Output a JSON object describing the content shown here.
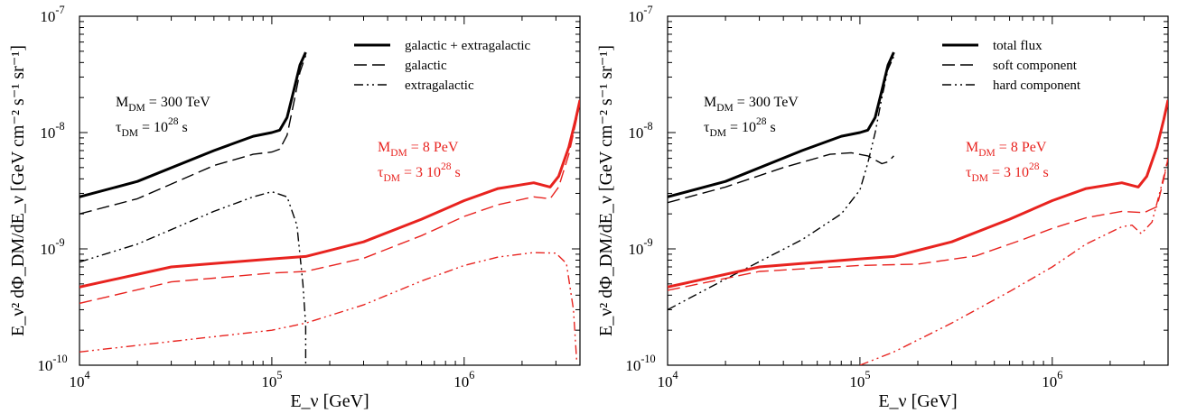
{
  "chart_data": [
    {
      "type": "line",
      "xscale": "log",
      "yscale": "log",
      "xlim": [
        10000,
        4000000
      ],
      "ylim": [
        1e-10,
        1e-07
      ],
      "grid": false,
      "legend_position": "top-right",
      "xlabel": "E_ν [GeV]",
      "ylabel": "E_ν² dΦ_DM/dE_ν [GeV cm⁻² s⁻¹ sr⁻¹]",
      "x_ticks": [
        "10^4",
        "10^5",
        "10^6"
      ],
      "y_ticks": [
        "10^-10",
        "10^-9",
        "10^-8",
        "10^-7"
      ],
      "legend": [
        "galactic + extragalactic",
        "galactic",
        "extragalactic"
      ],
      "annotations": [
        {
          "color": "#000000",
          "mass": "M_DM = 300 TeV",
          "tau": "τ_DM = 10^28 s"
        },
        {
          "color": "#e8231f",
          "mass": "M_DM = 8 PeV",
          "tau": "τ_DM = 3 10^28 s"
        }
      ],
      "series": [
        {
          "name": "galactic + extragalactic",
          "color": "#000000",
          "style": "solid",
          "width": 3,
          "x": [
            10000,
            20000,
            50000,
            80000,
            100000,
            110000,
            120000,
            130000,
            140000,
            150000
          ],
          "y": [
            2.8e-09,
            3.8e-09,
            7e-09,
            9.3e-09,
            1e-08,
            1.05e-08,
            1.35e-08,
            2.3e-08,
            3.8e-08,
            4.9e-08
          ]
        },
        {
          "name": "galactic",
          "color": "#000000",
          "style": "dashed",
          "width": 1.4,
          "x": [
            10000,
            20000,
            50000,
            80000,
            100000,
            110000,
            120000,
            130000,
            140000,
            150000
          ],
          "y": [
            2e-09,
            2.7e-09,
            5.2e-09,
            6.5e-09,
            6.8e-09,
            7.2e-09,
            9.5e-09,
            1.8e-08,
            3.3e-08,
            4.6e-08
          ]
        },
        {
          "name": "extragalactic",
          "color": "#000000",
          "style": "dashdotdot",
          "width": 1.4,
          "x": [
            10000,
            20000,
            50000,
            80000,
            100000,
            120000,
            135000,
            145000,
            150000,
            150000
          ],
          "y": [
            7.7e-10,
            1.1e-09,
            2.1e-09,
            2.8e-09,
            3.1e-09,
            2.8e-09,
            1.6e-09,
            5e-10,
            2.2e-10,
            1e-10
          ]
        },
        {
          "name": "galactic + extragalactic",
          "color": "#e8231f",
          "style": "solid",
          "width": 3,
          "x": [
            10000,
            30000,
            100000,
            150000,
            300000,
            600000,
            1000000,
            1500000,
            2300000,
            2800000,
            3100000,
            3500000,
            3800000,
            4000000
          ],
          "y": [
            4.7e-10,
            7e-10,
            8.2e-10,
            8.6e-10,
            1.15e-09,
            1.8e-09,
            2.6e-09,
            3.3e-09,
            3.7e-09,
            3.4e-09,
            4.2e-09,
            7.5e-09,
            1.3e-08,
            1.9e-08
          ]
        },
        {
          "name": "galactic",
          "color": "#e8231f",
          "style": "dashed",
          "width": 1.4,
          "x": [
            10000,
            30000,
            100000,
            150000,
            300000,
            600000,
            1000000,
            1500000,
            2300000,
            2800000,
            3100000,
            3500000,
            3800000,
            4000000
          ],
          "y": [
            3.4e-10,
            5.2e-10,
            6.2e-10,
            6.4e-10,
            8.3e-10,
            1.3e-09,
            1.9e-09,
            2.4e-09,
            2.8e-09,
            2.7e-09,
            3.4e-09,
            6.5e-09,
            1.2e-08,
            1.8e-08
          ]
        },
        {
          "name": "extragalactic",
          "color": "#e8231f",
          "style": "dashdotdot",
          "width": 1.4,
          "x": [
            10000,
            30000,
            100000,
            150000,
            300000,
            600000,
            1000000,
            1500000,
            2300000,
            3000000,
            3400000,
            3700000,
            3850000
          ],
          "y": [
            1.3e-10,
            1.6e-10,
            2e-10,
            2.3e-10,
            3.3e-10,
            5.3e-10,
            7.2e-10,
            8.5e-10,
            9.3e-10,
            9.2e-10,
            7.5e-10,
            3e-10,
            1.05e-10
          ]
        }
      ]
    },
    {
      "type": "line",
      "xscale": "log",
      "yscale": "log",
      "xlim": [
        10000,
        4000000
      ],
      "ylim": [
        1e-10,
        1e-07
      ],
      "grid": false,
      "legend_position": "top-right",
      "xlabel": "E_ν [GeV]",
      "ylabel": "E_ν² dΦ_DM/dE_ν [GeV cm⁻² s⁻¹ sr⁻¹]",
      "x_ticks": [
        "10^4",
        "10^5",
        "10^6"
      ],
      "y_ticks": [
        "10^-10",
        "10^-9",
        "10^-8",
        "10^-7"
      ],
      "legend": [
        "total flux",
        "soft component",
        "hard component"
      ],
      "annotations": [
        {
          "color": "#000000",
          "mass": "M_DM = 300 TeV",
          "tau": "τ_DM = 10^28 s"
        },
        {
          "color": "#e8231f",
          "mass": "M_DM = 8 PeV",
          "tau": "τ_DM = 3 10^28 s"
        }
      ],
      "series": [
        {
          "name": "total flux",
          "color": "#000000",
          "style": "solid",
          "width": 3,
          "x": [
            10000,
            20000,
            50000,
            80000,
            100000,
            110000,
            120000,
            130000,
            140000,
            150000
          ],
          "y": [
            2.8e-09,
            3.8e-09,
            7e-09,
            9.3e-09,
            1e-08,
            1.05e-08,
            1.35e-08,
            2.3e-08,
            3.8e-08,
            4.9e-08
          ]
        },
        {
          "name": "soft component",
          "color": "#000000",
          "style": "dashed",
          "width": 1.4,
          "x": [
            10000,
            20000,
            40000,
            70000,
            90000,
            110000,
            130000,
            140000,
            150000
          ],
          "y": [
            2.5e-09,
            3.4e-09,
            5e-09,
            6.5e-09,
            6.7e-09,
            6.3e-09,
            5.4e-09,
            5.6e-09,
            6.3e-09
          ]
        },
        {
          "name": "hard component",
          "color": "#000000",
          "style": "dashdotdot",
          "width": 1.4,
          "x": [
            10000,
            20000,
            50000,
            80000,
            100000,
            110000,
            120000,
            130000,
            140000,
            150000
          ],
          "y": [
            3e-10,
            5.5e-10,
            1.2e-09,
            2e-09,
            3.2e-09,
            5.5e-09,
            1e-08,
            2e-08,
            3.5e-08,
            4.5e-08
          ]
        },
        {
          "name": "total flux",
          "color": "#e8231f",
          "style": "solid",
          "width": 3,
          "x": [
            10000,
            30000,
            100000,
            150000,
            300000,
            600000,
            1000000,
            1500000,
            2300000,
            2800000,
            3100000,
            3500000,
            3800000,
            4000000
          ],
          "y": [
            4.7e-10,
            7e-10,
            8.2e-10,
            8.6e-10,
            1.15e-09,
            1.8e-09,
            2.6e-09,
            3.3e-09,
            3.7e-09,
            3.4e-09,
            4.2e-09,
            7.5e-09,
            1.3e-08,
            1.9e-08
          ]
        },
        {
          "name": "soft component",
          "color": "#e8231f",
          "style": "dashed",
          "width": 1.4,
          "x": [
            10000,
            30000,
            100000,
            200000,
            400000,
            700000,
            1000000,
            1500000,
            2300000,
            3000000,
            3500000,
            3800000,
            4000000
          ],
          "y": [
            4.4e-10,
            6.4e-10,
            7.2e-10,
            7.4e-10,
            8.7e-10,
            1.2e-09,
            1.5e-09,
            1.85e-09,
            2.1e-09,
            2.05e-09,
            2.3e-09,
            4e-09,
            6e-09
          ]
        },
        {
          "name": "hard component",
          "color": "#e8231f",
          "style": "dashdotdot",
          "width": 1.4,
          "x": [
            100000,
            150000,
            300000,
            600000,
            1000000,
            1500000,
            2300000,
            2600000,
            2900000,
            3300000,
            3700000,
            4000000
          ],
          "y": [
            1e-10,
            1.3e-10,
            2.3e-10,
            4.3e-10,
            7e-10,
            1.1e-09,
            1.55e-09,
            1.6e-09,
            1.35e-09,
            1.7e-09,
            3.5e-09,
            6e-09
          ]
        }
      ]
    }
  ]
}
